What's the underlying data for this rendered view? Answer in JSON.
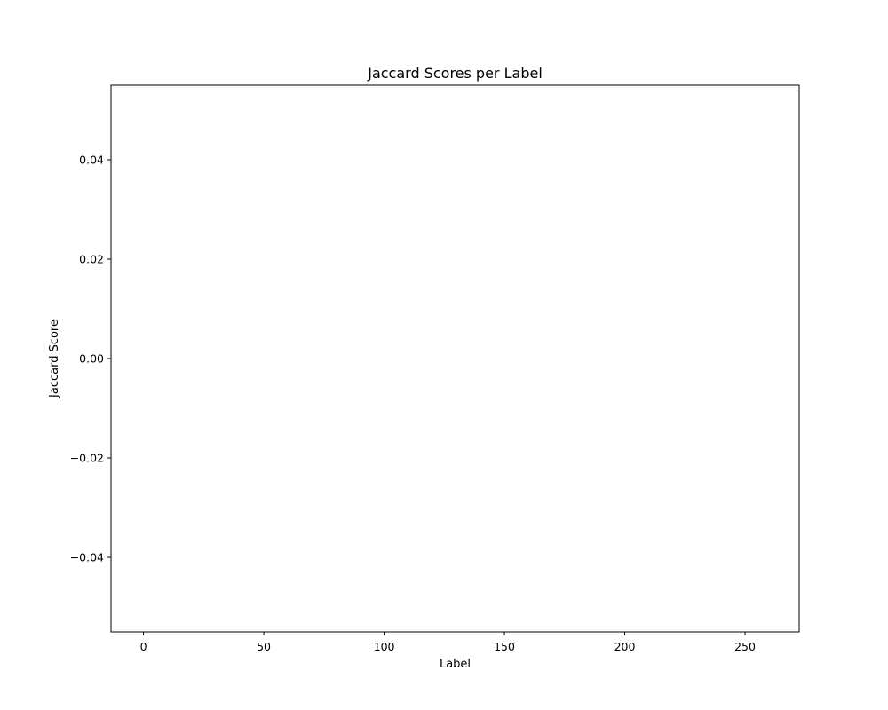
{
  "chart_data": {
    "type": "bar",
    "title": "Jaccard Scores per Label",
    "xlabel": "Label",
    "ylabel": "Jaccard Score",
    "xlim": [
      -13.5,
      272.5
    ],
    "ylim": [
      -0.055,
      0.055
    ],
    "xticks": [
      0,
      50,
      100,
      150,
      200,
      250
    ],
    "yticks": [
      -0.04,
      -0.02,
      0.0,
      0.02,
      0.04
    ],
    "ytick_labels": [
      "−0.04",
      "−0.02",
      "0.00",
      "0.02",
      "0.04"
    ],
    "categories": [],
    "values": [],
    "grid": false,
    "colors": {
      "axes": "#000000",
      "background": "#ffffff",
      "bar": "#1f77b4"
    }
  }
}
